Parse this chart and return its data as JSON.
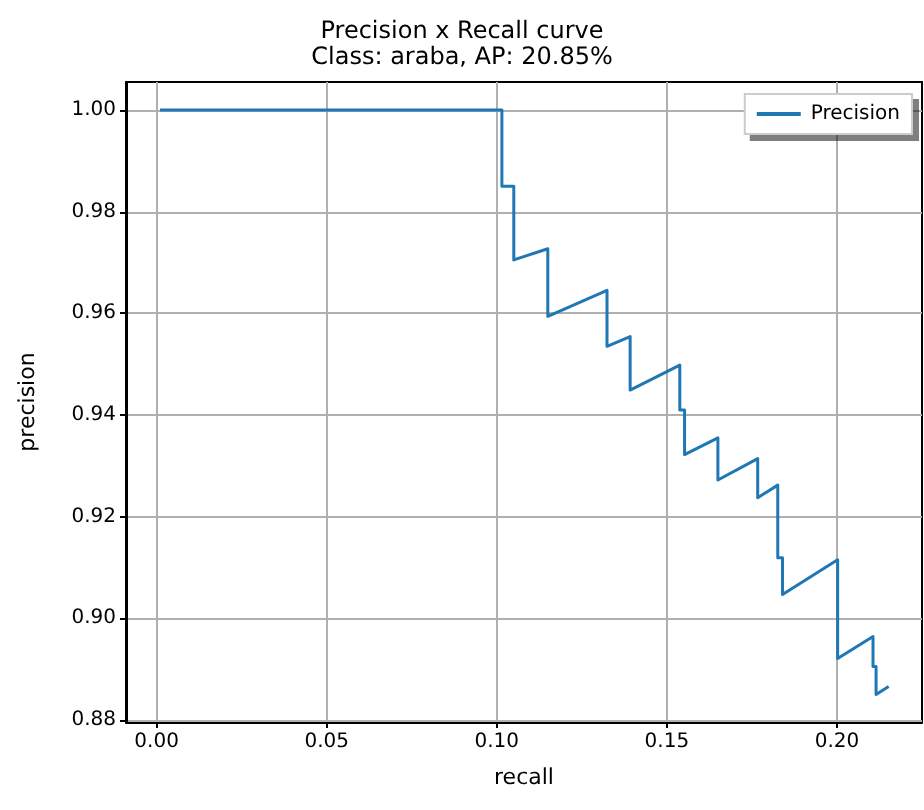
{
  "chart_data": {
    "type": "line",
    "title": "Precision x Recall curve",
    "subtitle": "Class: araba, AP: 20.85%",
    "xlabel": "recall",
    "ylabel": "precision",
    "series": [
      {
        "name": "Precision",
        "color": "#1f77b4",
        "x": [
          0.001,
          0.1015,
          0.1015,
          0.105,
          0.105,
          0.115,
          0.115,
          0.1324,
          0.1324,
          0.1392,
          0.1392,
          0.1538,
          0.1538,
          0.1552,
          0.1552,
          0.165,
          0.165,
          0.1767,
          0.1767,
          0.1826,
          0.1826,
          0.184,
          0.184,
          0.2002,
          0.2002,
          0.2106,
          0.2106,
          0.2115,
          0.2115,
          0.2152
        ],
        "values": [
          1.0,
          1.0,
          0.985,
          0.985,
          0.9705,
          0.9727,
          0.9594,
          0.9645,
          0.9535,
          0.9554,
          0.9449,
          0.9498,
          0.941,
          0.941,
          0.9322,
          0.9355,
          0.9272,
          0.9314,
          0.9237,
          0.9262,
          0.9119,
          0.9119,
          0.9047,
          0.9115,
          0.8921,
          0.8964,
          0.8905,
          0.8905,
          0.885,
          0.8866
        ]
      }
    ],
    "xlim": [
      -0.009,
      0.225
    ],
    "ylim": [
      0.8796,
      1.0055
    ],
    "xticks": [
      {
        "value": 0,
        "label": "0.00"
      },
      {
        "value": 0.05,
        "label": "0.05"
      },
      {
        "value": 0.1,
        "label": "0.10"
      },
      {
        "value": 0.15,
        "label": "0.15"
      },
      {
        "value": 0.2,
        "label": "0.20"
      }
    ],
    "yticks": [
      {
        "value": 0.88,
        "label": "0.88"
      },
      {
        "value": 0.9,
        "label": "0.90"
      },
      {
        "value": 0.92,
        "label": "0.92"
      },
      {
        "value": 0.94,
        "label": "0.94"
      },
      {
        "value": 0.96,
        "label": "0.96"
      },
      {
        "value": 0.98,
        "label": "0.98"
      },
      {
        "value": 1.0,
        "label": "1.00"
      }
    ],
    "grid": true,
    "legend": "top right",
    "marker": "none",
    "line_style": "solid"
  }
}
